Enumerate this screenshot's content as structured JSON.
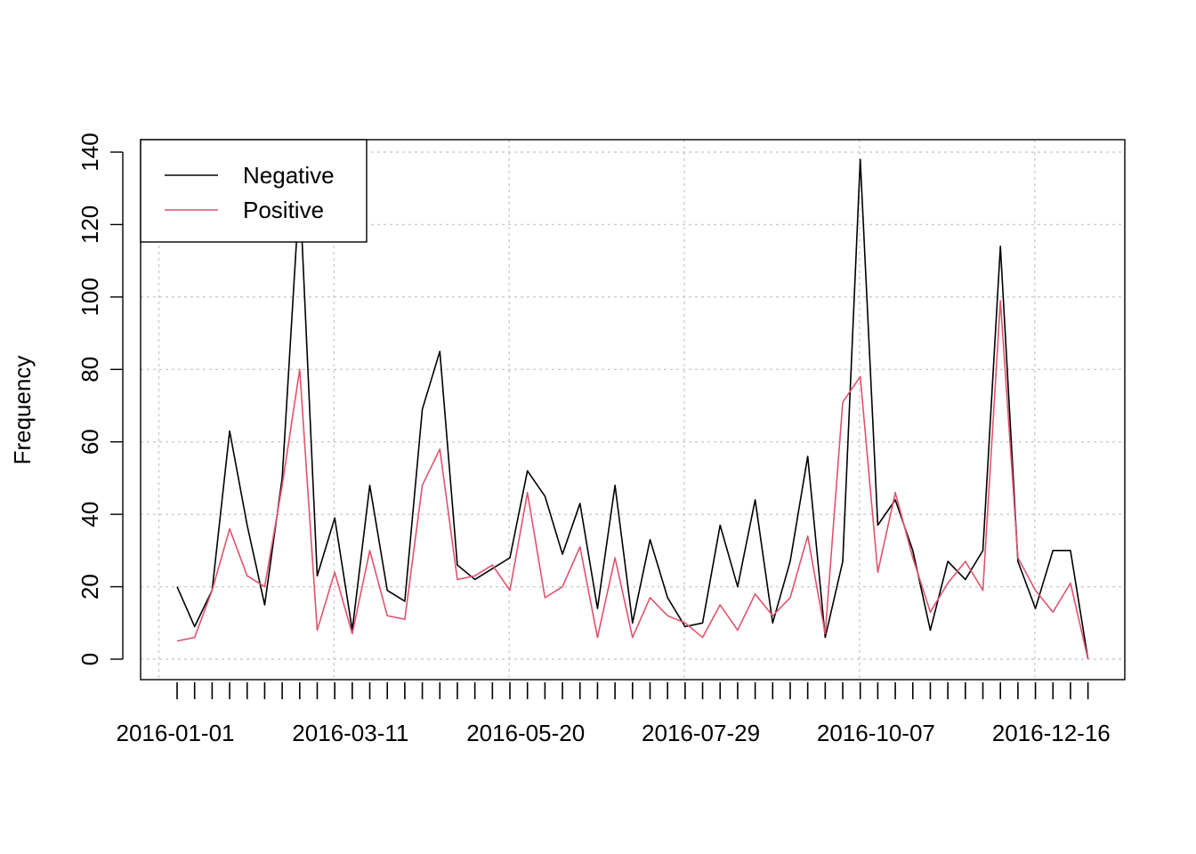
{
  "chart_data": {
    "type": "line",
    "title": "",
    "xlabel": "",
    "ylabel": "Frequency",
    "x_tick_labels": [
      "2016-01-01",
      "2016-03-11",
      "2016-05-20",
      "2016-07-29",
      "2016-10-07",
      "2016-12-16"
    ],
    "x_tick_indices": [
      0,
      10,
      20,
      30,
      40,
      50
    ],
    "y_ticks": [
      "0",
      "20",
      "40",
      "60",
      "80",
      "100",
      "120",
      "140"
    ],
    "ylim": [
      0,
      140
    ],
    "grid": true,
    "legend_position": "top-left",
    "x": [
      "2016-01-01",
      "2016-01-08",
      "2016-01-15",
      "2016-01-22",
      "2016-01-29",
      "2016-02-05",
      "2016-02-12",
      "2016-02-19",
      "2016-02-26",
      "2016-03-04",
      "2016-03-11",
      "2016-03-18",
      "2016-03-25",
      "2016-04-01",
      "2016-04-08",
      "2016-04-15",
      "2016-04-22",
      "2016-04-29",
      "2016-05-06",
      "2016-05-13",
      "2016-05-20",
      "2016-05-27",
      "2016-06-03",
      "2016-06-10",
      "2016-06-17",
      "2016-06-24",
      "2016-07-01",
      "2016-07-08",
      "2016-07-15",
      "2016-07-22",
      "2016-07-29",
      "2016-08-05",
      "2016-08-12",
      "2016-08-19",
      "2016-08-26",
      "2016-09-02",
      "2016-09-09",
      "2016-09-16",
      "2016-09-23",
      "2016-09-30",
      "2016-10-07",
      "2016-10-14",
      "2016-10-21",
      "2016-10-28",
      "2016-11-04",
      "2016-11-11",
      "2016-11-18",
      "2016-11-25",
      "2016-12-02",
      "2016-12-09",
      "2016-12-16",
      "2016-12-23",
      "2016-12-30"
    ],
    "series": [
      {
        "name": "Negative",
        "color": "#000000",
        "values": [
          20,
          9,
          19,
          63,
          37,
          15,
          50,
          130,
          23,
          39,
          8,
          48,
          19,
          16,
          69,
          85,
          26,
          22,
          25,
          28,
          52,
          45,
          29,
          43,
          14,
          48,
          10,
          33,
          17,
          9,
          10,
          37,
          20,
          44,
          10,
          27,
          56,
          6,
          27,
          138,
          37,
          44,
          30,
          8,
          27,
          22,
          30,
          114,
          27,
          14,
          30,
          30,
          0
        ]
      },
      {
        "name": "Positive",
        "color": "#DF536B",
        "values": [
          5,
          6,
          19,
          36,
          23,
          20,
          48,
          80,
          8,
          24,
          7,
          30,
          12,
          11,
          48,
          58,
          22,
          23,
          26,
          19,
          46,
          17,
          20,
          31,
          6,
          28,
          6,
          17,
          12,
          10,
          6,
          15,
          8,
          18,
          12,
          17,
          34,
          7,
          71,
          78,
          24,
          46,
          28,
          13,
          21,
          27,
          19,
          99,
          28,
          19,
          13,
          21,
          0
        ]
      }
    ]
  }
}
